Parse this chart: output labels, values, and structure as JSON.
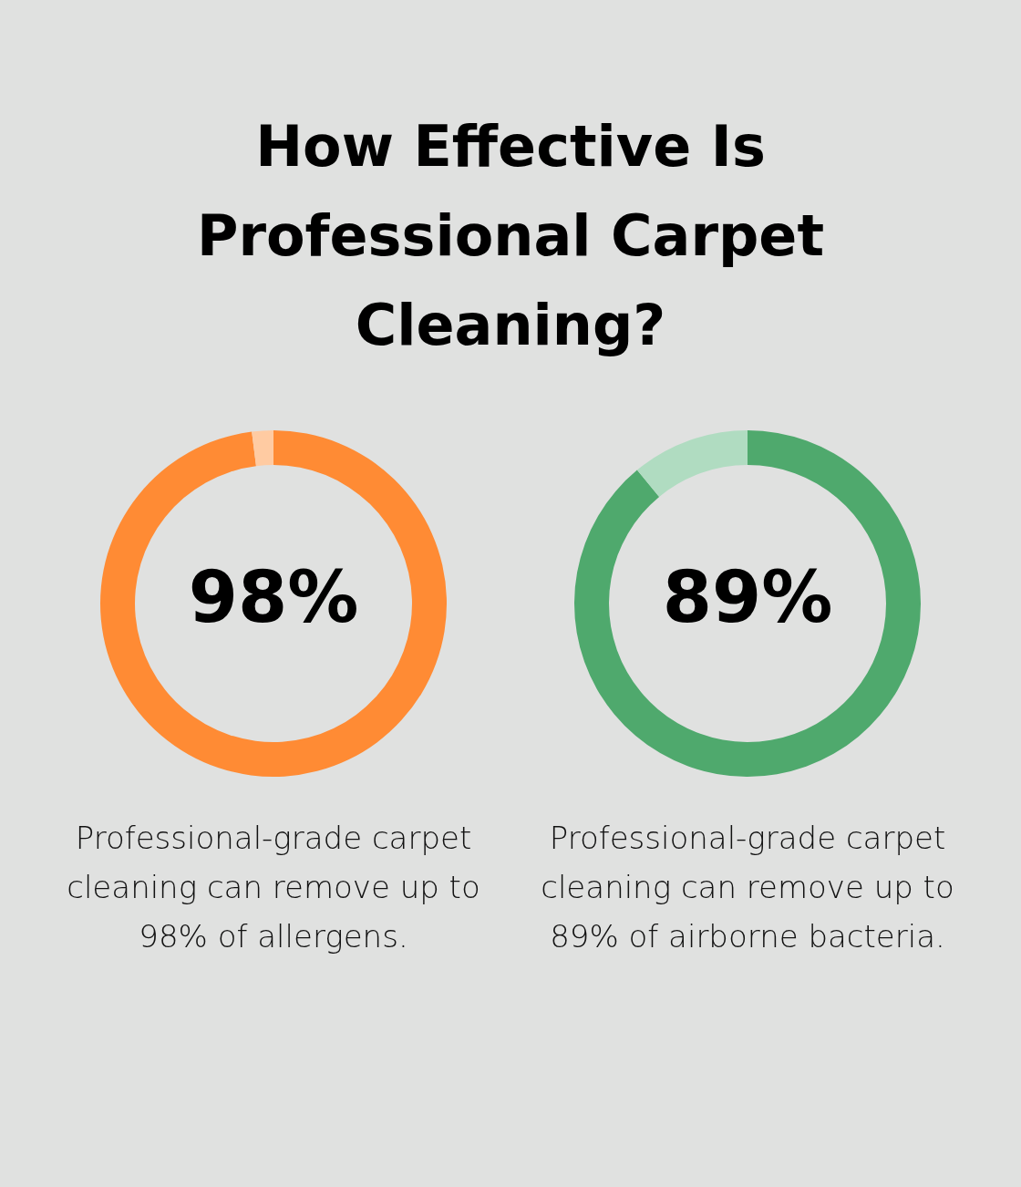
{
  "chart_data": [
    {
      "type": "donut",
      "title": "How Effective Is Professional Carpet Cleaning?",
      "categories": [
        null,
        null
      ],
      "values": [
        98,
        2
      ],
      "colors": [
        "#ff8b34",
        "#ffcba2"
      ],
      "value_labels": [
        "98%",
        null
      ],
      "annotations": [
        "Professional-grade carpet cleaning can remove up to 98% of allergens."
      ]
    },
    {
      "type": "donut",
      "categories": [
        null,
        null
      ],
      "values": [
        89,
        11
      ],
      "colors": [
        "#4fa96d",
        "#b0dcc1"
      ],
      "value_labels": [
        "89%",
        null
      ],
      "annotations": [
        "Professional-grade carpet cleaning can remove up to 89% of airborne bacteria."
      ]
    }
  ]
}
